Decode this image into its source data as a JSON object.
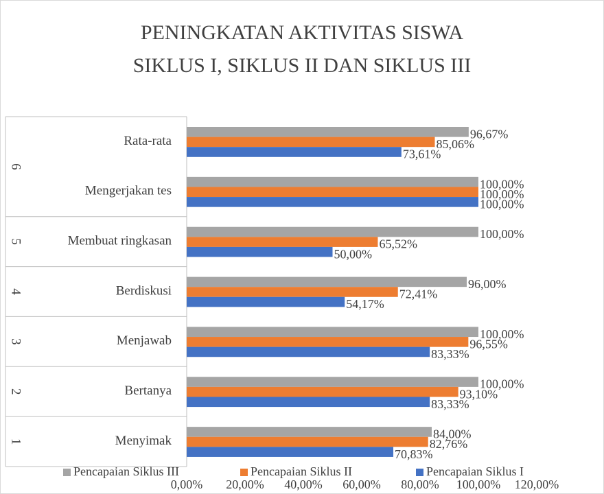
{
  "chart_data": {
    "type": "bar",
    "orientation": "horizontal",
    "title": [
      "PENINGKATAN AKTIVITAS SISWA",
      "SIKLUS I, SIKLUS II DAN SIKLUS III"
    ],
    "categories": [
      "Menyimak",
      "Bertanya",
      "Menjawab",
      "Berdiskusi",
      "Membuat ringkasan",
      "Mengerjakan tes",
      "Rata-rata"
    ],
    "group_labels": [
      "1",
      "2",
      "3",
      "4",
      "5",
      "6"
    ],
    "group_sizes": [
      1,
      1,
      1,
      1,
      1,
      2
    ],
    "series": [
      {
        "name": "Pencapaian Siklus III",
        "color": "#a5a5a5",
        "values": [
          84,
          100,
          100,
          96,
          100,
          100,
          96.67
        ],
        "value_labels": [
          "84,00%",
          "100,00%",
          "100,00%",
          "96,00%",
          "100,00%",
          "100,00%",
          "96,67%"
        ]
      },
      {
        "name": "Pencapaian Siklus II",
        "color": "#ed7d31",
        "values": [
          82.76,
          93.1,
          96.55,
          72.41,
          65.52,
          100,
          85.06
        ],
        "value_labels": [
          "82,76%",
          "93,10%",
          "96,55%",
          "72,41%",
          "65,52%",
          "100,00%",
          "85,06%"
        ]
      },
      {
        "name": "Pencapaian Siklus I",
        "color": "#4472c4",
        "values": [
          70.83,
          83.33,
          83.33,
          54.17,
          50,
          100,
          73.61
        ],
        "value_labels": [
          "70,83%",
          "83,33%",
          "83,33%",
          "54,17%",
          "50,00%",
          "100,00%",
          "73,61%"
        ]
      }
    ],
    "xlim": [
      0,
      120
    ],
    "xticks": [
      {
        "value": 0,
        "label": "0,00%"
      },
      {
        "value": 20,
        "label": "20,00%"
      },
      {
        "value": 40,
        "label": "40,00%"
      },
      {
        "value": 60,
        "label": "60,00%"
      },
      {
        "value": 80,
        "label": "80,00%"
      },
      {
        "value": 100,
        "label": "100,00%"
      },
      {
        "value": 120,
        "label": "120,00%"
      }
    ],
    "legend": "bottom"
  }
}
